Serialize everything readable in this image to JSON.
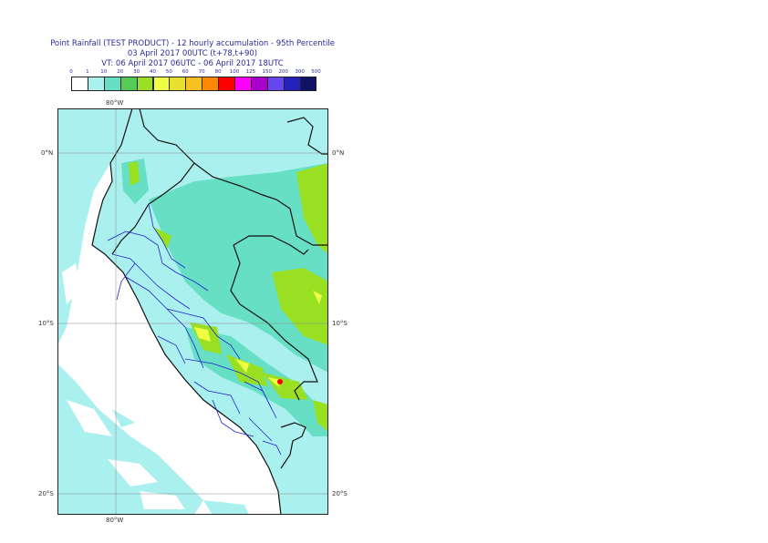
{
  "title": {
    "line1": "Point Rainfall (TEST PRODUCT) - 12 hourly accumulation - 95th Percentile",
    "line2": "03 April 2017 00UTC (t+78,t+90)",
    "line3": "VT: 06 April 2017 06UTC - 06 April 2017 18UTC"
  },
  "colorbar": {
    "labels": [
      "0",
      "1",
      "10",
      "20",
      "30",
      "40",
      "50",
      "60",
      "70",
      "80",
      "100",
      "125",
      "150",
      "200",
      "300",
      "500"
    ],
    "colors": [
      "#ffffff",
      "#aaf0ee",
      "#66dfc5",
      "#55cc55",
      "#99e022",
      "#eeff44",
      "#e8e030",
      "#f8c020",
      "#ff8800",
      "#ff0000",
      "#ff00ff",
      "#aa00cc",
      "#6644ee",
      "#2222bb",
      "#111166"
    ]
  },
  "map": {
    "lon_labels": {
      "top": "80°W",
      "bottom": "80°W"
    },
    "lat_labels": {
      "north": "0°N",
      "mid": "10°S",
      "south": "20°S"
    },
    "colors": {
      "land_base": "#aaf0ee",
      "rain_light": "#66dfc5",
      "rain_medium": "#99e022",
      "rain_heavy": "#eeff44",
      "peak": "#ff0000",
      "border": "#111111",
      "admin": "#2222cc",
      "grid": "#888888"
    }
  }
}
